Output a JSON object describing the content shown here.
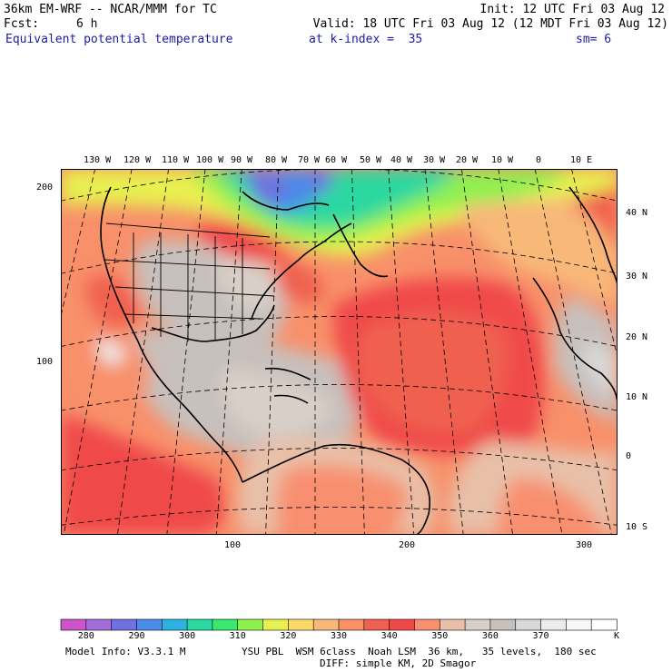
{
  "header": {
    "model_line": "36km EM-WRF -- NCAR/MMM for TC",
    "init": "Init: 12 UTC Fri 03 Aug 12",
    "fcst_label": "Fcst:",
    "fcst_value": "6 h",
    "valid": "Valid: 18 UTC Fri 03 Aug 12 (12 MDT Fri 03 Aug 12)",
    "field": "Equivalent potential temperature",
    "level": "at k-index =  35",
    "smoothing": "sm= 6"
  },
  "map": {
    "top_lon_labels": [
      "130 W",
      "120 W",
      "110 W",
      "100 W",
      "90 W",
      "80 W",
      "70 W",
      "60 W",
      "50 W",
      "40 W",
      "30 W",
      "20 W",
      "10 W",
      "0",
      "10 E"
    ],
    "right_lat_labels": [
      "40 N",
      "30 N",
      "20 N",
      "10 N",
      "0",
      "10 S"
    ],
    "left_grid_labels": [
      "200",
      "100"
    ],
    "bottom_grid_labels": [
      "100",
      "200",
      "300"
    ]
  },
  "colorbar": {
    "colors": [
      "#cc55cc",
      "#a070d8",
      "#7070e0",
      "#4a8ce8",
      "#2bb4e0",
      "#2ad8a0",
      "#38e870",
      "#90f050",
      "#e8f050",
      "#f8d868",
      "#f8b878",
      "#f8906a",
      "#f06050",
      "#f04848",
      "#f89070",
      "#e8c0a8",
      "#d8d0c8",
      "#c8c0bc",
      "#d8d8d8",
      "#ececec",
      "#f6f6f6",
      "#ffffff"
    ],
    "labels": [
      "280",
      "290",
      "300",
      "310",
      "320",
      "330",
      "340",
      "350",
      "360",
      "370"
    ],
    "unit": "K"
  },
  "footer": {
    "model_info": "Model Info: V3.3.1 M",
    "physics": "YSU PBL  WSM 6class  Noah LSM  36 km,   35 levels,  180 sec",
    "diffusion": "DIFF: simple KM, 2D Smagor"
  }
}
